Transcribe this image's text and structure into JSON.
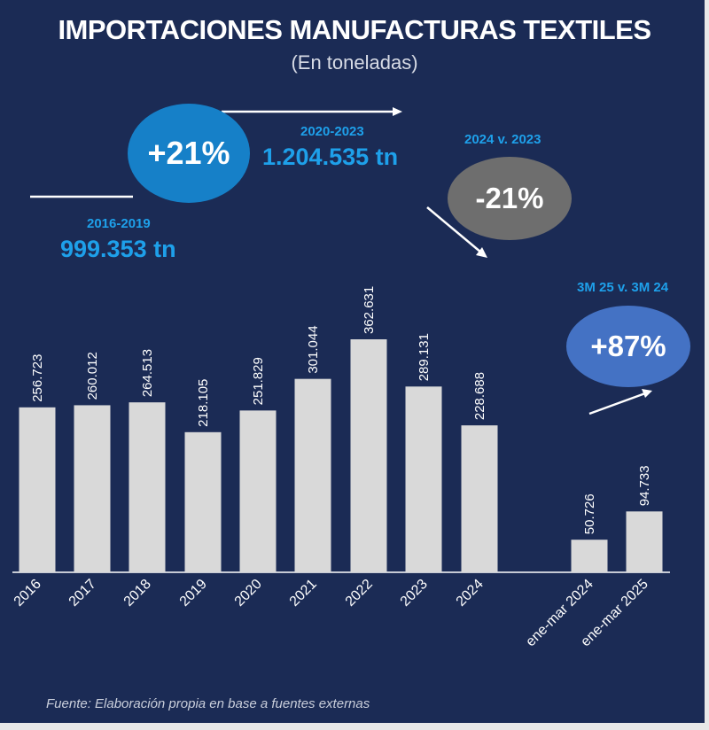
{
  "chart_data": {
    "type": "bar",
    "title": "IMPORTACIONES MANUFACTURAS TEXTILES",
    "subtitle": "(En toneladas)",
    "categories": [
      "2016",
      "2017",
      "2018",
      "2019",
      "2020",
      "2021",
      "2022",
      "2023",
      "2024",
      "ene-mar 2024",
      "ene-mar 2025"
    ],
    "values": [
      256723,
      260012,
      264513,
      218105,
      251829,
      301044,
      362631,
      289131,
      228688,
      50726,
      94733
    ],
    "value_labels": [
      "256.723",
      "260.012",
      "264.513",
      "218.105",
      "251.829",
      "301.044",
      "362.631",
      "289.131",
      "228.688",
      "50.726",
      "94.733"
    ],
    "ylim": [
      0,
      362631
    ],
    "xlabel": "",
    "ylabel": "",
    "grid": false,
    "annotations": {
      "growth": {
        "value": "+21%",
        "color": "#1680c8"
      },
      "period_2016_2019": {
        "label": "2016-2019",
        "total": "999.353 tn"
      },
      "period_2020_2023": {
        "label": "2020-2023",
        "total": "1.204.535 tn"
      },
      "yoy_2024": {
        "label": "2024 v. 2023",
        "value": "-21%",
        "color": "#6e6e6e"
      },
      "quarter": {
        "label": "3M 25 v. 3M 24",
        "value": "+87%",
        "color": "#4472c4"
      }
    },
    "source": "Fuente: Elaboración propia en base a  fuentes externas"
  },
  "colors": {
    "background": "#1b2b55",
    "bar": "#d9d9d9",
    "accent_text": "#1ea0ea"
  }
}
